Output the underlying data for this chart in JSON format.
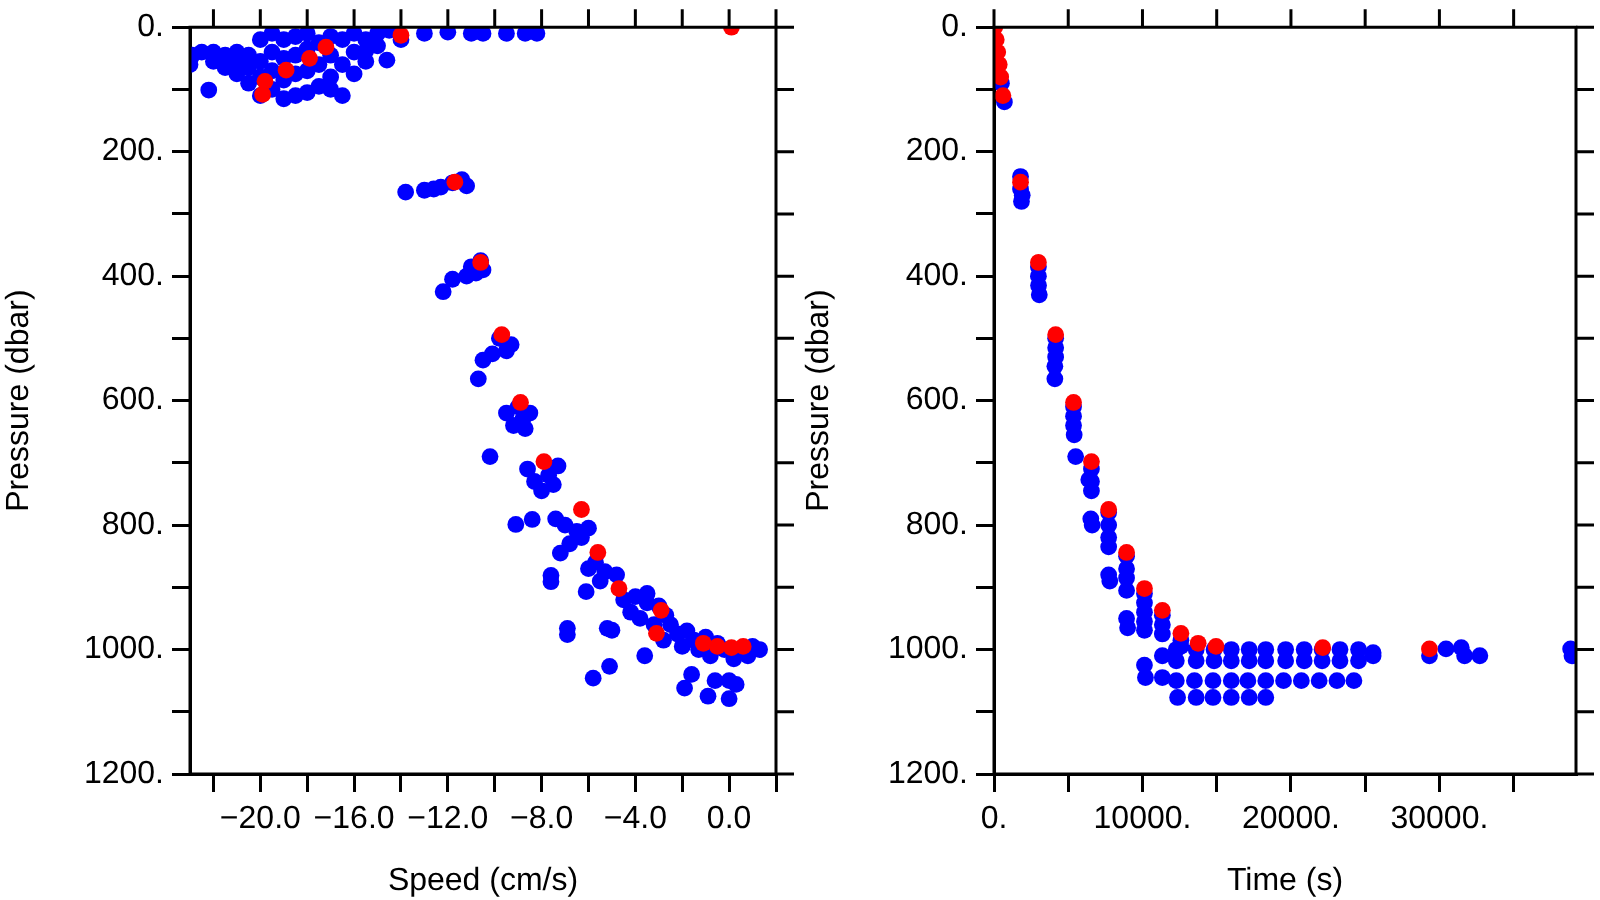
{
  "chart_data": [
    {
      "type": "scatter",
      "xlabel": "Speed (cm/s)",
      "ylabel": "Pressure (dbar)",
      "marker": "circle",
      "grid": false,
      "xlim": [
        -23,
        2
      ],
      "xticks": [
        {
          "value": -22,
          "label": null
        },
        {
          "value": -20,
          "label": "−20.0"
        },
        {
          "value": -18,
          "label": null
        },
        {
          "value": -16,
          "label": "−16.0"
        },
        {
          "value": -14,
          "label": null
        },
        {
          "value": -12,
          "label": "−12.0"
        },
        {
          "value": -10,
          "label": null
        },
        {
          "value": -8,
          "label": "−8.0"
        },
        {
          "value": -6,
          "label": null
        },
        {
          "value": -4,
          "label": "−4.0"
        },
        {
          "value": -2,
          "label": null
        },
        {
          "value": 0,
          "label": "0.0"
        },
        {
          "value": 2,
          "label": null
        }
      ],
      "ylim": [
        1200,
        0
      ],
      "yticks": [
        {
          "value": 0,
          "label": "0."
        },
        {
          "value": 100,
          "label": null
        },
        {
          "value": 200,
          "label": "200."
        },
        {
          "value": 300,
          "label": null
        },
        {
          "value": 400,
          "label": "400."
        },
        {
          "value": 500,
          "label": null
        },
        {
          "value": 600,
          "label": "600."
        },
        {
          "value": 700,
          "label": null
        },
        {
          "value": 800,
          "label": "800."
        },
        {
          "value": 900,
          "label": null
        },
        {
          "value": 1000,
          "label": "1000."
        },
        {
          "value": 1100,
          "label": null
        },
        {
          "value": 1200,
          "label": "1200."
        }
      ],
      "series": [
        {
          "color": "#0000ff",
          "x": [
            -23,
            -22.9,
            -22.5,
            -22,
            -22,
            -21.5,
            -21.5,
            -21,
            -21,
            -21,
            -20.5,
            -20.5,
            -20.5,
            -20,
            -20,
            -20,
            -20,
            -19.5,
            -19.5,
            -19.5,
            -19.5,
            -19,
            -19,
            -19,
            -19,
            -18.5,
            -18.5,
            -18.5,
            -18.5,
            -18,
            -18,
            -18,
            -18,
            -17.5,
            -17.5,
            -17.5,
            -17,
            -17,
            -17,
            -17,
            -16.5,
            -16.5,
            -16.5,
            -16,
            -16,
            -16,
            -15.5,
            -15.5,
            -15.5,
            -15,
            -15,
            -14.6,
            -14.5,
            -14,
            -13,
            -12,
            -11,
            -10.5,
            -9.5,
            -8.7,
            -8.2,
            -22.2,
            -13.8,
            -13,
            -12.6,
            -12.3,
            -11.8,
            -11.4,
            -11.2,
            -12.2,
            -11.8,
            -11.2,
            -11,
            -10.8,
            -10.6,
            -10.5,
            -10.7,
            -10.5,
            -10.1,
            -9.8,
            -9.5,
            -9.3,
            -9.5,
            -9.2,
            -9,
            -8.8,
            -8.7,
            -8.5,
            -10.2,
            -8.6,
            -8.3,
            -8,
            -7.7,
            -7.5,
            -7.3,
            -9.1,
            -8.4,
            -7.4,
            -7,
            -6.5,
            -6,
            -6.3,
            -6.8,
            -7.2,
            -7.6,
            -7.6,
            -6.1,
            -6,
            -5.7,
            -5.3,
            -4.8,
            -5.5,
            -6.9,
            -6.9,
            -5.2,
            -5,
            -5.1,
            -5.8,
            -4.5,
            -4,
            -3.5,
            -3,
            -4.2,
            -3.8,
            -3.2,
            -3.5,
            -2.7,
            -3.6,
            -2.5,
            -2.2,
            -1.8,
            -1.5,
            -2,
            -1,
            -0.5,
            -0.2,
            1,
            1.3,
            -0.8,
            0.2,
            0.8,
            -1.3,
            -2.8,
            -1.9,
            -1.6,
            -0.9,
            -0.6,
            0,
            0,
            0.3
          ],
          "values": [
            60,
            45,
            40,
            55,
            40,
            65,
            45,
            75,
            55,
            40,
            90,
            65,
            45,
            110,
            80,
            55,
            20,
            100,
            70,
            40,
            10,
            115,
            85,
            50,
            20,
            110,
            75,
            45,
            15,
            105,
            70,
            35,
            10,
            95,
            60,
            25,
            100,
            80,
            45,
            15,
            110,
            60,
            20,
            75,
            40,
            10,
            55,
            38,
            20,
            30,
            10,
            53,
            5,
            20,
            10,
            8,
            10,
            10,
            10,
            10,
            10,
            101,
            265,
            262,
            260,
            257,
            250,
            245,
            255,
            425,
            405,
            400,
            385,
            395,
            375,
            390,
            565,
            535,
            525,
            500,
            520,
            510,
            620,
            640,
            610,
            630,
            645,
            620,
            690,
            710,
            730,
            745,
            720,
            735,
            705,
            799,
            791,
            790,
            800,
            810,
            805,
            820,
            830,
            845,
            881,
            891,
            907,
            870,
            860,
            875,
            880,
            890,
            966,
            976,
            966,
            969,
            1027,
            1046,
            920,
            915,
            925,
            930,
            940,
            950,
            960,
            910,
            945,
            1010,
            960,
            975,
            970,
            985,
            995,
            980,
            990,
            1000,
            995,
            1000,
            1010,
            1015,
            1010,
            1000,
            985,
            1062,
            1040,
            1075,
            1050,
            1050,
            1079,
            1056
          ]
        },
        {
          "color": "#ff0000",
          "x": [
            0.1,
            -14,
            -17.2,
            -17.9,
            -18.9,
            -19.8,
            -19.9,
            -11.7,
            -10.6,
            -9.7,
            -8.9,
            -7.9,
            -6.3,
            -5.6,
            -4.7,
            -2.9,
            -3.1,
            -1.1,
            -0.5,
            0.1,
            0.6
          ],
          "values": [
            0,
            13,
            32,
            50,
            69,
            87,
            108,
            249,
            378,
            494,
            603,
            698,
            775,
            844,
            902,
            937,
            974,
            990,
            995,
            997,
            995
          ]
        }
      ]
    },
    {
      "type": "scatter",
      "xlabel": "Time (s)",
      "ylabel": "Pressure (dbar)",
      "marker": "circle",
      "grid": false,
      "xlim": [
        0,
        39200
      ],
      "xticks": [
        {
          "value": 0,
          "label": "0."
        },
        {
          "value": 5000,
          "label": null
        },
        {
          "value": 10000,
          "label": "10000."
        },
        {
          "value": 15000,
          "label": null
        },
        {
          "value": 20000,
          "label": "20000."
        },
        {
          "value": 25000,
          "label": null
        },
        {
          "value": 30000,
          "label": "30000."
        },
        {
          "value": 35000,
          "label": null
        }
      ],
      "ylim": [
        1200,
        0
      ],
      "yticks": [
        {
          "value": 0,
          "label": "0."
        },
        {
          "value": 100,
          "label": null
        },
        {
          "value": 200,
          "label": "200."
        },
        {
          "value": 300,
          "label": null
        },
        {
          "value": 400,
          "label": "400."
        },
        {
          "value": 500,
          "label": null
        },
        {
          "value": 600,
          "label": "600."
        },
        {
          "value": 700,
          "label": null
        },
        {
          "value": 800,
          "label": "800."
        },
        {
          "value": 900,
          "label": null
        },
        {
          "value": 1000,
          "label": "1000."
        },
        {
          "value": 1100,
          "label": null
        },
        {
          "value": 1200,
          "label": "1200."
        }
      ],
      "series": [
        {
          "color": "#0000ff",
          "x": [
            500,
            700,
            1786,
            1786,
            1900,
            1850,
            2991,
            2991,
            3000,
            3050,
            4152,
            4152,
            4152,
            4100,
            4100,
            5357,
            5357,
            5357,
            5400,
            5500,
            6384,
            6563,
            6563,
            6563,
            6520,
            6610,
            7723,
            7723,
            7723,
            7723,
            7723,
            7800,
            8929,
            8929,
            8929,
            8929,
            8929,
            9000,
            10134,
            10134,
            10134,
            10134,
            10134,
            10134,
            10200,
            11339,
            11339,
            11339,
            11339,
            11339,
            12277,
            13616,
            14821,
            15982,
            17188,
            18304,
            19643,
            20893,
            22098,
            23304,
            24554,
            25536,
            12277,
            13616,
            14821,
            15982,
            17188,
            18304,
            19643,
            20893,
            22098,
            23304,
            24554,
            25536,
            12277,
            13500,
            14750,
            15982,
            17100,
            18304,
            19500,
            20700,
            21900,
            23100,
            24241,
            12366,
            13616,
            14750,
            15982,
            17188,
            18304,
            29330,
            30446,
            31473,
            31696,
            32723,
            38839,
            38929,
            12589,
            12589
          ],
          "values": [
            90,
            120,
            240,
            260,
            270,
            280,
            385,
            400,
            415,
            430,
            500,
            515,
            530,
            545,
            565,
            610,
            625,
            640,
            655,
            690,
            727,
            710,
            730,
            745,
            790,
            800,
            780,
            800,
            820,
            835,
            880,
            890,
            850,
            870,
            885,
            905,
            950,
            965,
            910,
            925,
            940,
            955,
            969,
            1025,
            1045,
            945,
            960,
            975,
            1010,
            1045,
            1000,
            1000,
            1000,
            1000,
            1000,
            1000,
            1000,
            1000,
            1000,
            1000,
            1000,
            1005,
            1018,
            1018,
            1018,
            1018,
            1018,
            1018,
            1018,
            1018,
            1018,
            1018,
            1018,
            1010,
            1050,
            1050,
            1050,
            1050,
            1050,
            1050,
            1050,
            1050,
            1050,
            1050,
            1050,
            1077,
            1077,
            1077,
            1077,
            1077,
            1077,
            1010,
            999,
            997,
            1010,
            1010,
            999,
            1010,
            985,
            995
          ]
        },
        {
          "color": "#ff0000",
          "x": [
            50,
            150,
            250,
            350,
            450,
            600,
            1786,
            2991,
            4152,
            5357,
            6563,
            7723,
            8929,
            10134,
            11339,
            12589,
            13750,
            14955,
            22143,
            29330
          ],
          "values": [
            0,
            20,
            40,
            60,
            80,
            110,
            249,
            378,
            494,
            603,
            698,
            775,
            844,
            902,
            937,
            974,
            990,
            995,
            997,
            999
          ]
        }
      ]
    }
  ]
}
